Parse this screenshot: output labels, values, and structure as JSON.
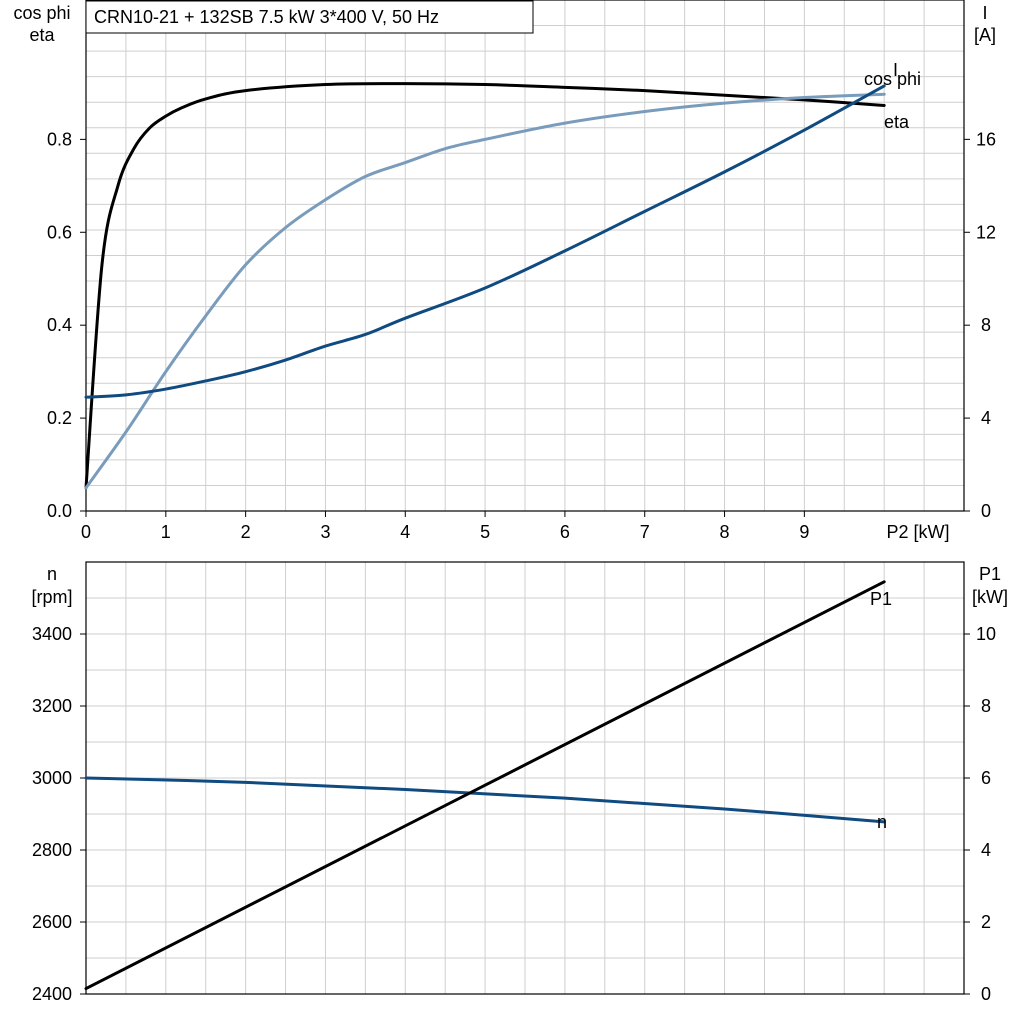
{
  "chart_data": [
    {
      "type": "line",
      "title": "CRN10-21 + 132SB   7.5 kW   3*400 V, 50 Hz",
      "xlabel": "P2 [kW]",
      "ylabel_left_lines": [
        "cos phi",
        "eta"
      ],
      "ylabel_right_lines": [
        "I",
        "[A]"
      ],
      "x_ticks": [
        "0",
        "1",
        "2",
        "3",
        "4",
        "5",
        "6",
        "7",
        "8",
        "9"
      ],
      "y_left_ticks": [
        "0.0",
        "0.2",
        "0.4",
        "0.6",
        "0.8"
      ],
      "y_right_ticks": [
        "0",
        "4",
        "8",
        "12",
        "16"
      ],
      "xlim": [
        0,
        11
      ],
      "ylim_left": [
        0,
        1.1
      ],
      "ylim_right": [
        0,
        22
      ],
      "grid": true,
      "colors": {
        "eta": "#000000",
        "cos_phi": "#7a9cbc",
        "I": "#0f4a80"
      },
      "series": [
        {
          "name": "eta",
          "axis": "left",
          "color": "#000000",
          "label": "eta",
          "x": [
            0,
            0.2,
            0.4,
            0.6,
            0.8,
            1.0,
            1.2,
            1.5,
            2.0,
            3.0,
            4.0,
            5.0,
            6.0,
            7.0,
            8.0,
            9.0,
            10.0
          ],
          "y": [
            0.05,
            0.53,
            0.7,
            0.78,
            0.825,
            0.85,
            0.868,
            0.887,
            0.905,
            0.918,
            0.92,
            0.918,
            0.912,
            0.905,
            0.895,
            0.885,
            0.873
          ]
        },
        {
          "name": "cos phi",
          "axis": "left",
          "color": "#7a9cbc",
          "label": "cos phi",
          "x": [
            0,
            0.5,
            1.0,
            1.5,
            2.0,
            2.5,
            3.0,
            3.5,
            4.0,
            4.5,
            5.0,
            6.0,
            7.0,
            8.0,
            9.0,
            10.0
          ],
          "y": [
            0.05,
            0.17,
            0.3,
            0.42,
            0.53,
            0.61,
            0.67,
            0.72,
            0.75,
            0.78,
            0.8,
            0.835,
            0.86,
            0.878,
            0.89,
            0.897
          ]
        },
        {
          "name": "I",
          "axis": "right",
          "color": "#0f4a80",
          "label": "I",
          "x": [
            0,
            0.5,
            1.0,
            1.5,
            2.0,
            2.5,
            3.0,
            3.5,
            4.0,
            5.0,
            6.0,
            7.0,
            8.0,
            9.0,
            10.0
          ],
          "y": [
            4.9,
            5.0,
            5.25,
            5.6,
            6.0,
            6.5,
            7.1,
            7.6,
            8.3,
            9.6,
            11.2,
            12.9,
            14.6,
            16.4,
            18.3
          ]
        }
      ]
    },
    {
      "type": "line",
      "title": "",
      "xlabel": "",
      "ylabel_left_lines": [
        "n",
        "[rpm]"
      ],
      "ylabel_right_lines": [
        "P1",
        "[kW]"
      ],
      "x_ticks": [],
      "y_left_ticks": [
        "2400",
        "2600",
        "2800",
        "3000",
        "3200",
        "3400"
      ],
      "y_right_ticks": [
        "0",
        "2",
        "4",
        "6",
        "8",
        "10"
      ],
      "xlim": [
        0,
        11
      ],
      "ylim_left": [
        2400,
        3600
      ],
      "ylim_right": [
        0,
        12
      ],
      "grid": true,
      "colors": {
        "P1": "#000000",
        "n": "#0f4a80"
      },
      "series": [
        {
          "name": "n",
          "axis": "left",
          "color": "#0f4a80",
          "label": "n",
          "x": [
            0,
            2,
            4,
            6,
            8,
            10
          ],
          "y": [
            3000,
            2988,
            2968,
            2944,
            2914,
            2878
          ]
        },
        {
          "name": "P1",
          "axis": "right",
          "color": "#000000",
          "label": "P1",
          "x": [
            0,
            10
          ],
          "y": [
            0.15,
            11.45
          ]
        }
      ]
    }
  ]
}
